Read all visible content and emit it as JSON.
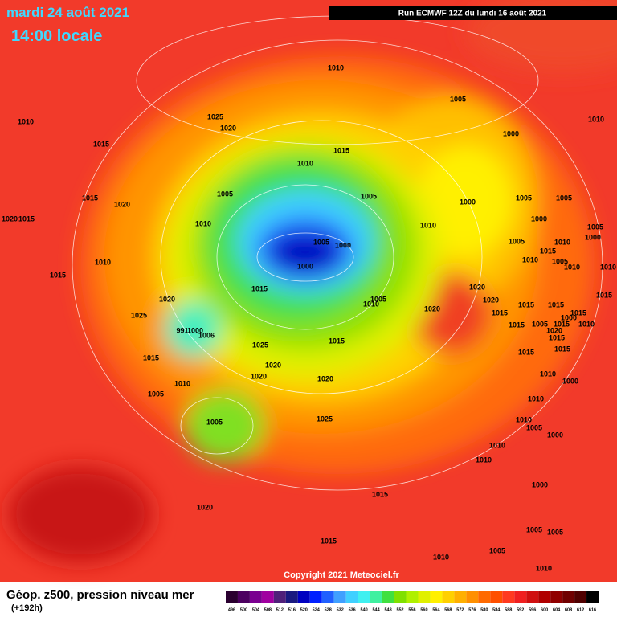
{
  "header": {
    "date": "mardi 24 août 2021",
    "time": "14:00 locale",
    "run": "Run ECMWF 12Z du lundi 16 août 2021"
  },
  "footer": {
    "title": "Géop. z500, pression niveau mer",
    "lead": "(+192h)",
    "copyright": "Copyright 2021 Meteociel.fr"
  },
  "isobar_labels": [
    "1010",
    "1005",
    "1010",
    "1025",
    "1020",
    "1010",
    "1015",
    "1015",
    "1010",
    "1000",
    "1005",
    "1005",
    "1015",
    "1020",
    "1000",
    "1005",
    "1005",
    "1020",
    "1015",
    "1010",
    "1010",
    "1000",
    "1005",
    "1000",
    "1005",
    "1000",
    "1005",
    "1010",
    "1010",
    "1000",
    "1010",
    "1015",
    "1005",
    "1010",
    "1010",
    "1015",
    "1015",
    "1020",
    "1020",
    "1005",
    "1010",
    "1020",
    "1015",
    "1020",
    "1015",
    "1015",
    "1015",
    "1015",
    "1000",
    "1025",
    "1010",
    "991",
    "1000",
    "1006",
    "1015",
    "1005",
    "1015",
    "1015",
    "1020",
    "1025",
    "1015",
    "1015",
    "1015",
    "1015",
    "1020",
    "1010",
    "1020",
    "1020",
    "1010",
    "1000",
    "1005",
    "1010",
    "1005",
    "1025",
    "1010",
    "1005",
    "1000",
    "1010",
    "1010",
    "1000",
    "1015",
    "1020",
    "1005",
    "1005",
    "1015",
    "1005",
    "1010",
    "1010"
  ],
  "colorbar": {
    "values": [
      496,
      500,
      504,
      508,
      512,
      516,
      520,
      524,
      528,
      532,
      536,
      540,
      544,
      548,
      552,
      556,
      560,
      564,
      568,
      572,
      576,
      580,
      584,
      588,
      592,
      596,
      600,
      604,
      608,
      612,
      616
    ],
    "colors": [
      "#2a0030",
      "#4c0060",
      "#7a0090",
      "#a000a0",
      "#50207a",
      "#1a1a80",
      "#0000c0",
      "#0020ff",
      "#2060ff",
      "#40a0ff",
      "#40d0ff",
      "#40f0f0",
      "#40f0a0",
      "#40e040",
      "#80e000",
      "#b0f000",
      "#e0f000",
      "#fff000",
      "#ffd000",
      "#ffb000",
      "#ff9000",
      "#ff6a00",
      "#ff5000",
      "#ff3a20",
      "#f02020",
      "#d01010",
      "#b00000",
      "#900000",
      "#700000",
      "#500000",
      "#000000"
    ]
  }
}
